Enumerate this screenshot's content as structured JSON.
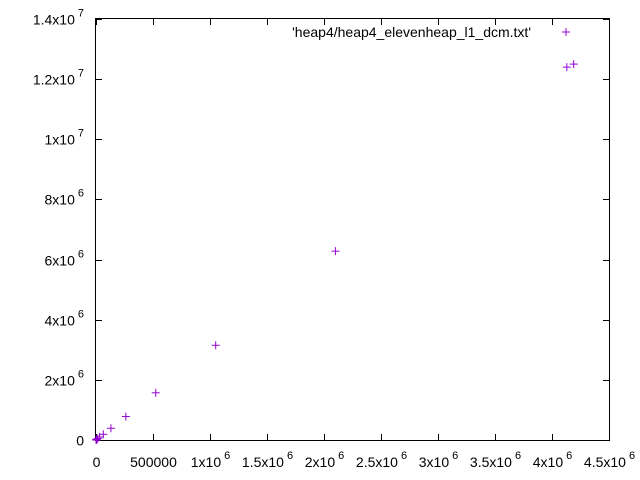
{
  "chart_data": {
    "type": "scatter",
    "title": "",
    "xlabel": "",
    "ylabel": "",
    "xlim": [
      0,
      4500000
    ],
    "ylim": [
      0,
      14000000
    ],
    "grid": false,
    "legend_position": "top-right",
    "x_ticks": [
      {
        "value": 0,
        "base": "0",
        "exp": ""
      },
      {
        "value": 500000,
        "base": "500000",
        "exp": ""
      },
      {
        "value": 1000000,
        "base": "1x10",
        "exp": "6"
      },
      {
        "value": 1500000,
        "base": "1.5x10",
        "exp": "6"
      },
      {
        "value": 2000000,
        "base": "2x10",
        "exp": "6"
      },
      {
        "value": 2500000,
        "base": "2.5x10",
        "exp": "6"
      },
      {
        "value": 3000000,
        "base": "3x10",
        "exp": "6"
      },
      {
        "value": 3500000,
        "base": "3.5x10",
        "exp": "6"
      },
      {
        "value": 4000000,
        "base": "4x10",
        "exp": "6"
      },
      {
        "value": 4500000,
        "base": "4.5x10",
        "exp": "6"
      }
    ],
    "y_ticks": [
      {
        "value": 0,
        "base": "0",
        "exp": ""
      },
      {
        "value": 2000000,
        "base": "2x10",
        "exp": "6"
      },
      {
        "value": 4000000,
        "base": "4x10",
        "exp": "6"
      },
      {
        "value": 6000000,
        "base": "6x10",
        "exp": "6"
      },
      {
        "value": 8000000,
        "base": "8x10",
        "exp": "6"
      },
      {
        "value": 10000000,
        "base": "1x10",
        "exp": "7"
      },
      {
        "value": 12000000,
        "base": "1.2x10",
        "exp": "7"
      },
      {
        "value": 14000000,
        "base": "1.4x10",
        "exp": "7"
      }
    ],
    "series": [
      {
        "name": "'heap4/heap4_elevenheap_l1_dcm.txt'",
        "color": "#9400d3",
        "marker": "plus",
        "x": [
          1000,
          2000,
          4000,
          8000,
          16000,
          32000,
          64000,
          131000,
          262000,
          524000,
          1050000,
          2100000,
          4130000,
          4190000
        ],
        "y": [
          3000,
          6000,
          12000,
          25000,
          50000,
          100000,
          190000,
          390000,
          780000,
          1570000,
          3150000,
          6280000,
          12400000,
          12500000
        ]
      }
    ]
  }
}
